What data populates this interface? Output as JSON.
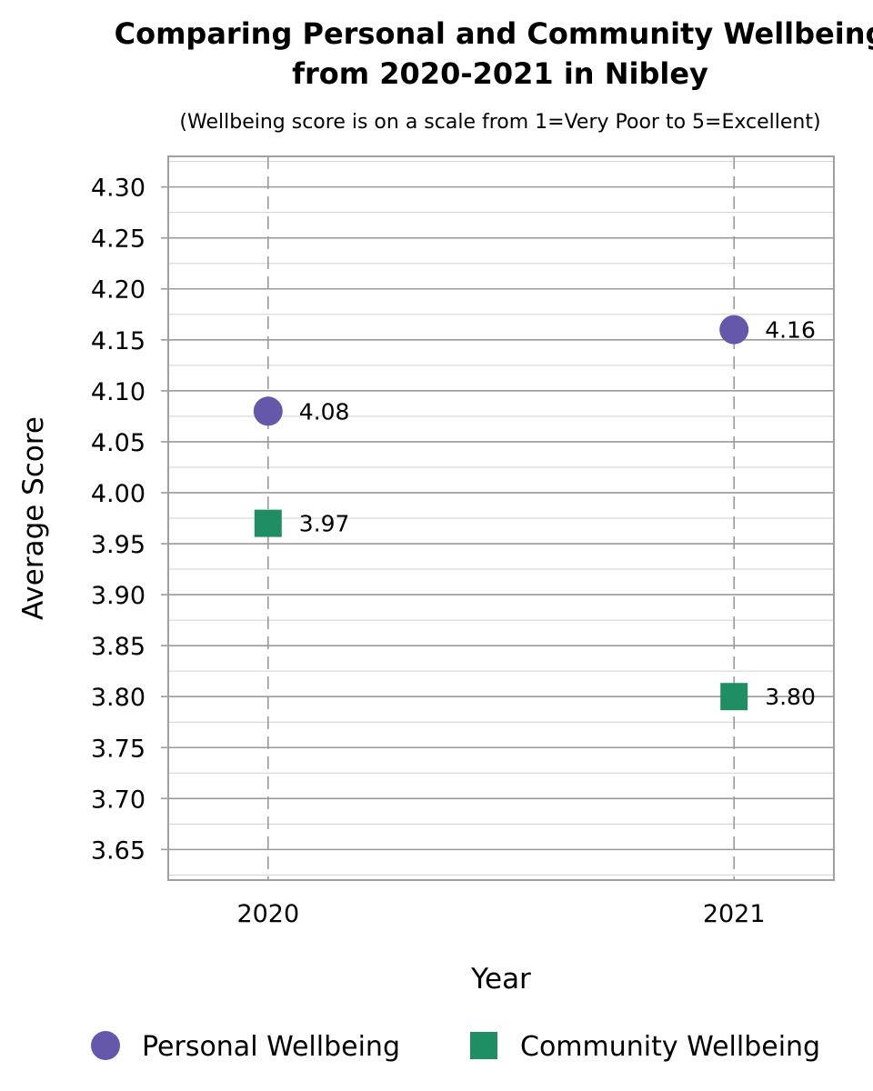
{
  "chart_data": {
    "type": "scatter",
    "title": "Comparing Personal and Community Wellbeing",
    "title_line2": "from 2020-2021 in Nibley",
    "subtitle": "(Wellbeing score is on a scale from 1=Very Poor to 5=Excellent)",
    "xlabel": "Year",
    "ylabel": "Average Score",
    "categories": [
      "2020",
      "2021"
    ],
    "ylim": [
      3.62,
      4.33
    ],
    "yticks": [
      3.65,
      3.7,
      3.75,
      3.8,
      3.85,
      3.9,
      3.95,
      4.0,
      4.05,
      4.1,
      4.15,
      4.2,
      4.25,
      4.3
    ],
    "ytick_labels": [
      "3.65",
      "3.70",
      "3.75",
      "3.80",
      "3.85",
      "3.90",
      "3.95",
      "4.00",
      "4.05",
      "4.10",
      "4.15",
      "4.20",
      "4.25",
      "4.30"
    ],
    "grid": true,
    "minor_grid": true,
    "legend_position": "bottom",
    "series": [
      {
        "name": "Personal Wellbeing",
        "marker": "circle",
        "color": "#6558ab",
        "values": [
          4.08,
          4.16
        ],
        "labels": [
          "4.08",
          "4.16"
        ]
      },
      {
        "name": "Community Wellbeing",
        "marker": "square",
        "color": "#1f8f63",
        "values": [
          3.97,
          3.8
        ],
        "labels": [
          "3.97",
          "3.80"
        ]
      }
    ]
  }
}
